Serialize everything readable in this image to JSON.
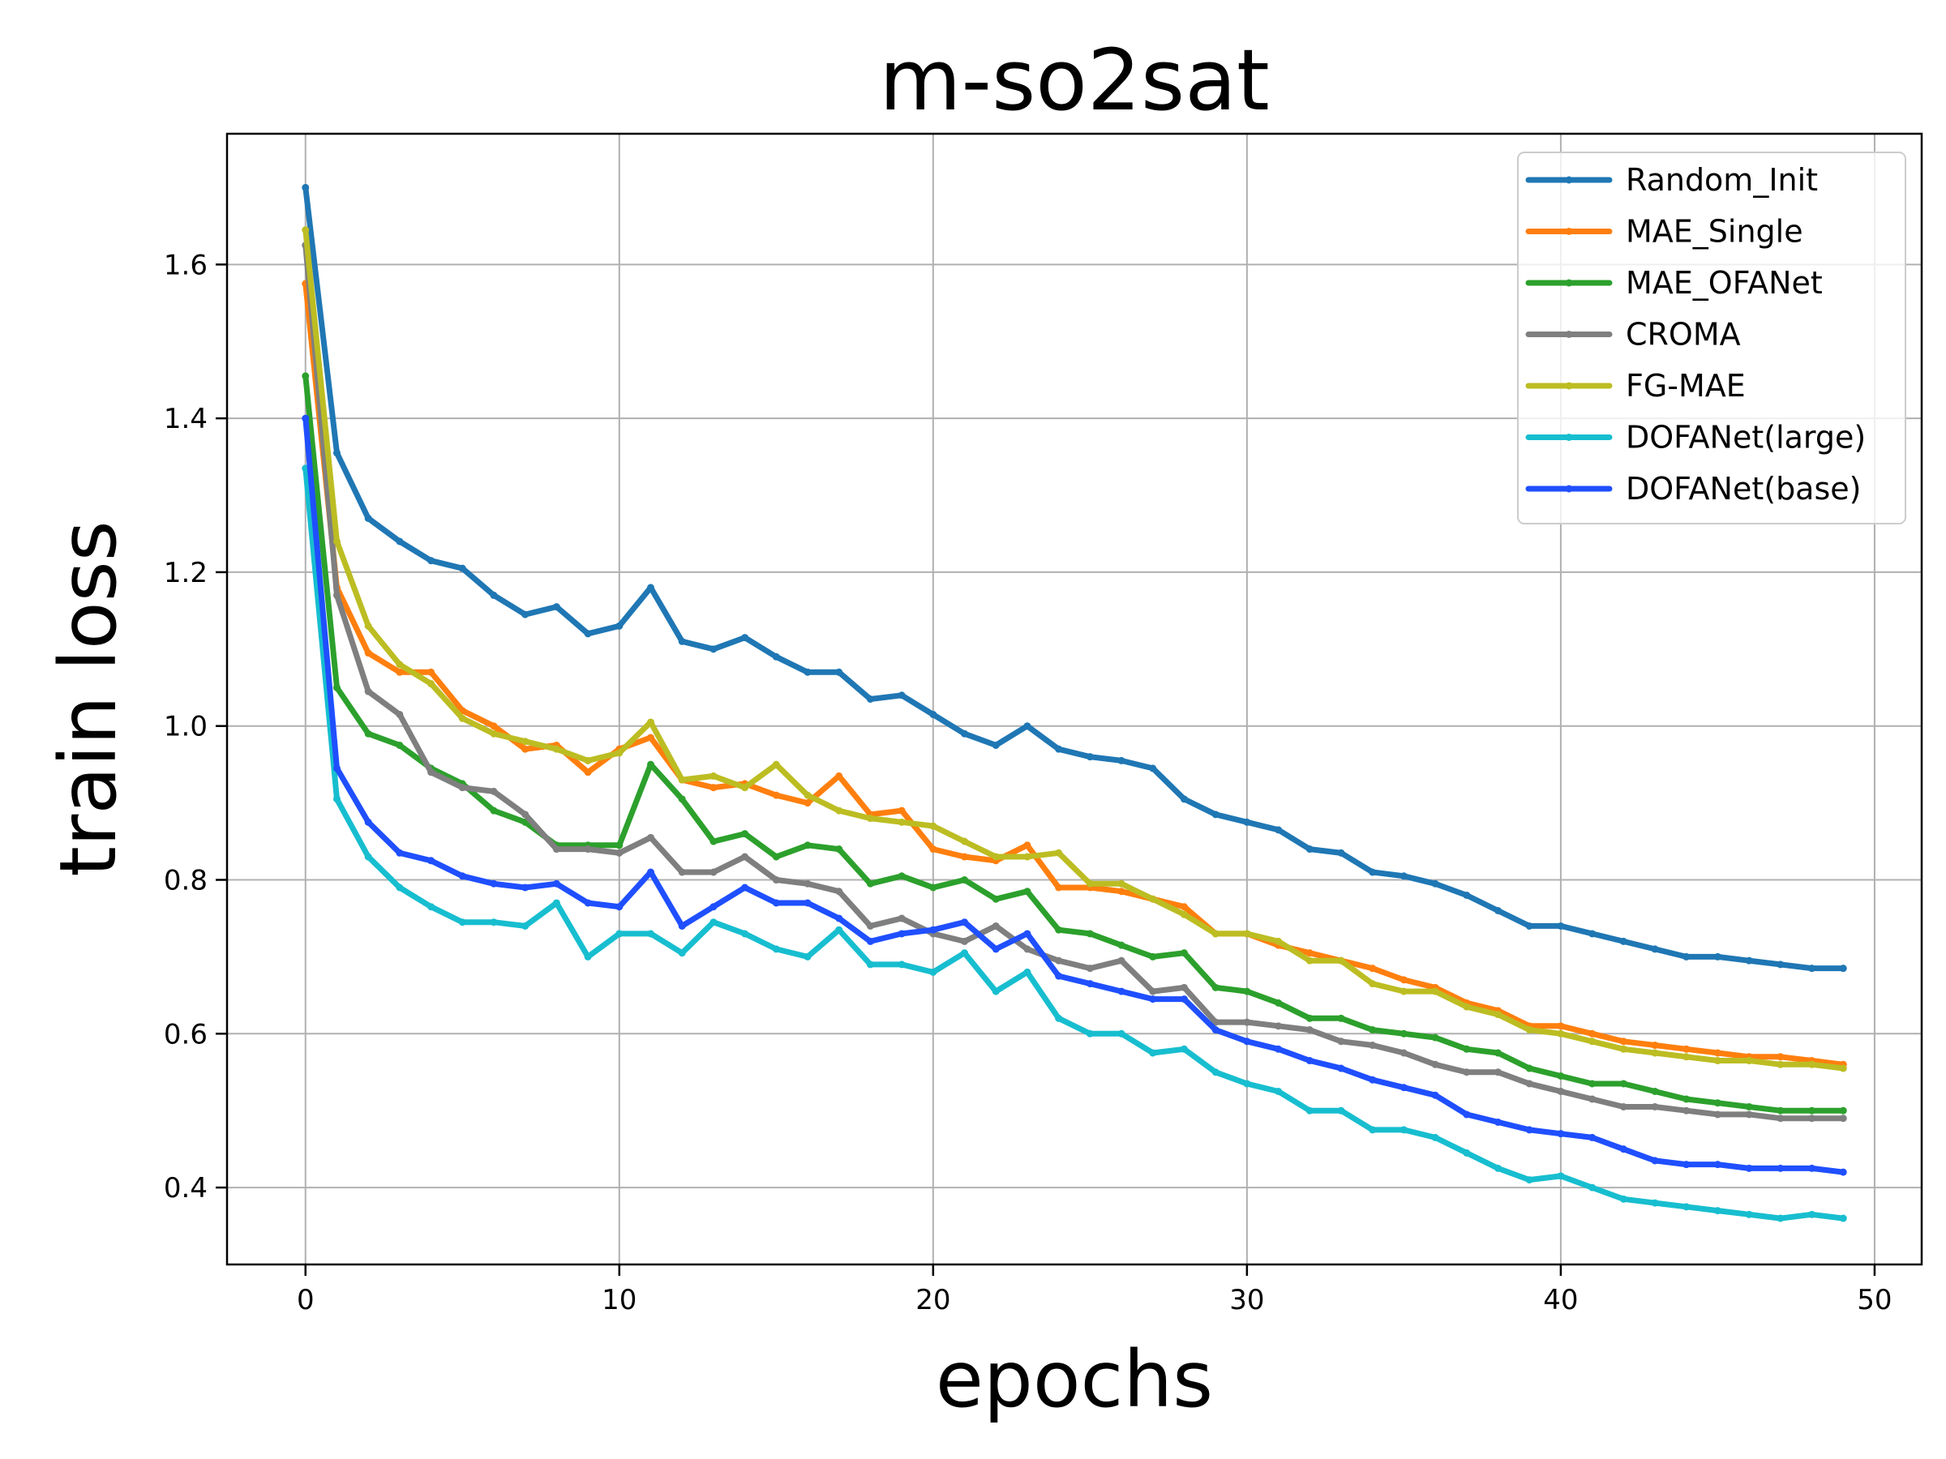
{
  "chart_data": {
    "type": "line",
    "title": "m-so2sat",
    "xlabel": "epochs",
    "ylabel": "train loss",
    "xlim": [
      -2.5,
      51.5
    ],
    "ylim": [
      0.3,
      1.77
    ],
    "xticks": [
      0,
      10,
      20,
      30,
      40,
      50
    ],
    "yticks": [
      0.4,
      0.6,
      0.8,
      1.0,
      1.2,
      1.4,
      1.6
    ],
    "xtick_labels": [
      "0",
      "10",
      "20",
      "30",
      "40",
      "50"
    ],
    "ytick_labels": [
      "0.4",
      "0.6",
      "0.8",
      "1.0",
      "1.2",
      "1.4",
      "1.6"
    ],
    "grid": true,
    "legend_position": "top-right",
    "series": [
      {
        "name": "Random_Init",
        "color": "#1f77b4",
        "values": [
          1.7,
          1.355,
          1.27,
          1.24,
          1.215,
          1.205,
          1.17,
          1.145,
          1.155,
          1.12,
          1.13,
          1.18,
          1.11,
          1.1,
          1.115,
          1.09,
          1.07,
          1.07,
          1.035,
          1.04,
          1.015,
          0.99,
          0.975,
          1.0,
          0.97,
          0.96,
          0.955,
          0.945,
          0.905,
          0.885,
          0.875,
          0.865,
          0.84,
          0.835,
          0.81,
          0.805,
          0.795,
          0.78,
          0.76,
          0.74,
          0.74,
          0.73,
          0.72,
          0.71,
          0.7,
          0.7,
          0.695,
          0.69,
          0.685,
          0.685
        ]
      },
      {
        "name": "MAE_Single",
        "color": "#ff7f0e",
        "values": [
          1.575,
          1.18,
          1.095,
          1.07,
          1.07,
          1.02,
          1.0,
          0.97,
          0.975,
          0.94,
          0.97,
          0.985,
          0.93,
          0.92,
          0.925,
          0.91,
          0.9,
          0.935,
          0.885,
          0.89,
          0.84,
          0.83,
          0.825,
          0.845,
          0.79,
          0.79,
          0.785,
          0.775,
          0.765,
          0.73,
          0.73,
          0.715,
          0.705,
          0.695,
          0.685,
          0.67,
          0.66,
          0.64,
          0.63,
          0.61,
          0.61,
          0.6,
          0.59,
          0.585,
          0.58,
          0.575,
          0.57,
          0.57,
          0.565,
          0.56
        ]
      },
      {
        "name": "MAE_OFANet",
        "color": "#2ca02c",
        "values": [
          1.455,
          1.05,
          0.99,
          0.975,
          0.945,
          0.925,
          0.89,
          0.875,
          0.845,
          0.845,
          0.845,
          0.95,
          0.905,
          0.85,
          0.86,
          0.83,
          0.845,
          0.84,
          0.795,
          0.805,
          0.79,
          0.8,
          0.775,
          0.785,
          0.735,
          0.73,
          0.715,
          0.7,
          0.705,
          0.66,
          0.655,
          0.64,
          0.62,
          0.62,
          0.605,
          0.6,
          0.595,
          0.58,
          0.575,
          0.555,
          0.545,
          0.535,
          0.535,
          0.525,
          0.515,
          0.51,
          0.505,
          0.5,
          0.5,
          0.5
        ]
      },
      {
        "name": "CROMA",
        "color": "#7f7f7f",
        "values": [
          1.625,
          1.17,
          1.045,
          1.015,
          0.94,
          0.92,
          0.915,
          0.885,
          0.84,
          0.84,
          0.835,
          0.855,
          0.81,
          0.81,
          0.83,
          0.8,
          0.795,
          0.785,
          0.74,
          0.75,
          0.73,
          0.72,
          0.74,
          0.71,
          0.695,
          0.685,
          0.695,
          0.655,
          0.66,
          0.615,
          0.615,
          0.61,
          0.605,
          0.59,
          0.585,
          0.575,
          0.56,
          0.55,
          0.55,
          0.535,
          0.525,
          0.515,
          0.505,
          0.505,
          0.5,
          0.495,
          0.495,
          0.49,
          0.49,
          0.49
        ]
      },
      {
        "name": "FG-MAE",
        "color": "#bcbd22",
        "values": [
          1.645,
          1.24,
          1.13,
          1.08,
          1.055,
          1.01,
          0.99,
          0.98,
          0.97,
          0.955,
          0.965,
          1.005,
          0.93,
          0.935,
          0.92,
          0.95,
          0.91,
          0.89,
          0.88,
          0.875,
          0.87,
          0.85,
          0.83,
          0.83,
          0.835,
          0.795,
          0.795,
          0.775,
          0.755,
          0.73,
          0.73,
          0.72,
          0.695,
          0.695,
          0.665,
          0.655,
          0.655,
          0.635,
          0.625,
          0.605,
          0.6,
          0.59,
          0.58,
          0.575,
          0.57,
          0.565,
          0.565,
          0.56,
          0.56,
          0.555
        ]
      },
      {
        "name": "DOFANet(large)",
        "color": "#17becf",
        "values": [
          1.335,
          0.905,
          0.83,
          0.79,
          0.765,
          0.745,
          0.745,
          0.74,
          0.77,
          0.7,
          0.73,
          0.73,
          0.705,
          0.745,
          0.73,
          0.71,
          0.7,
          0.735,
          0.69,
          0.69,
          0.68,
          0.705,
          0.655,
          0.68,
          0.62,
          0.6,
          0.6,
          0.575,
          0.58,
          0.55,
          0.535,
          0.525,
          0.5,
          0.5,
          0.475,
          0.475,
          0.465,
          0.445,
          0.425,
          0.41,
          0.415,
          0.4,
          0.385,
          0.38,
          0.375,
          0.37,
          0.365,
          0.36,
          0.365,
          0.36
        ]
      },
      {
        "name": "DOFANet(base)",
        "color": "#1f4fff",
        "values": [
          1.4,
          0.945,
          0.875,
          0.835,
          0.825,
          0.805,
          0.795,
          0.79,
          0.795,
          0.77,
          0.765,
          0.81,
          0.74,
          0.765,
          0.79,
          0.77,
          0.77,
          0.75,
          0.72,
          0.73,
          0.735,
          0.745,
          0.71,
          0.73,
          0.675,
          0.665,
          0.655,
          0.645,
          0.645,
          0.605,
          0.59,
          0.58,
          0.565,
          0.555,
          0.54,
          0.53,
          0.52,
          0.495,
          0.485,
          0.475,
          0.47,
          0.465,
          0.45,
          0.435,
          0.43,
          0.43,
          0.425,
          0.425,
          0.425,
          0.42
        ]
      }
    ]
  }
}
